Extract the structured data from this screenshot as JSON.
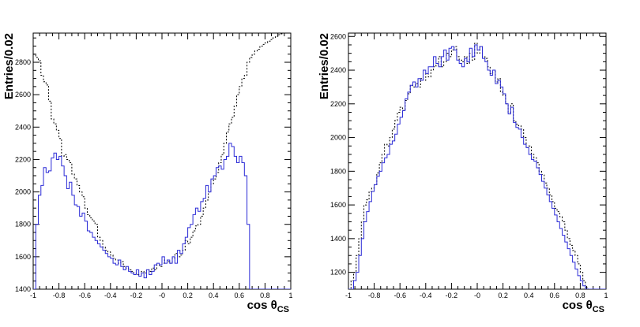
{
  "chart_data": [
    {
      "type": "histogram",
      "xlabel": "cos θ",
      "xlabel_sub": "CS",
      "ylabel": "Entries/0.02",
      "xlim": [
        -1,
        1
      ],
      "ylim": [
        1400,
        2980
      ],
      "xticks": [
        "-1",
        "-0.8",
        "-0.6",
        "-0.4",
        "-0.2",
        "-0",
        "0.2",
        "0.4",
        "0.6",
        "0.8",
        "1"
      ],
      "xtick_values": [
        -1,
        -0.8,
        -0.6,
        -0.4,
        -0.2,
        0,
        0.2,
        0.4,
        0.6,
        0.8,
        1
      ],
      "yticks": [
        "1400",
        "1600",
        "1800",
        "2000",
        "2200",
        "2400",
        "2600",
        "2800"
      ],
      "ytick_values": [
        1400,
        1600,
        1800,
        2000,
        2200,
        2400,
        2600,
        2800
      ],
      "grid": false,
      "bin_edges_start": -1,
      "bin_width": 0.02,
      "series": [
        {
          "style": "dashed",
          "color": "#000000",
          "values": [
            2850,
            2830,
            2810,
            2720,
            2680,
            2660,
            2560,
            2450,
            2420,
            2380,
            2330,
            2220,
            2230,
            2200,
            2180,
            2110,
            2080,
            2040,
            2000,
            1970,
            1900,
            1860,
            1840,
            1820,
            1800,
            1720,
            1700,
            1660,
            1640,
            1630,
            1610,
            1590,
            1580,
            1560,
            1570,
            1540,
            1530,
            1520,
            1510,
            1500,
            1490,
            1480,
            1510,
            1500,
            1520,
            1510,
            1530,
            1520,
            1550,
            1540,
            1560,
            1580,
            1570,
            1560,
            1590,
            1620,
            1600,
            1610,
            1640,
            1700,
            1680,
            1720,
            1760,
            1790,
            1800,
            1850,
            1900,
            1950,
            2000,
            2050,
            2080,
            2120,
            2180,
            2230,
            2300,
            2370,
            2420,
            2460,
            2530,
            2600,
            2650,
            2700,
            2720,
            2800,
            2830,
            2850,
            2870,
            2880,
            2900,
            2910,
            2920,
            2930,
            2940,
            2950,
            2960,
            2970,
            2975,
            2980,
            2980,
            2980
          ]
        },
        {
          "style": "solid",
          "color": "#2a2ad6",
          "values": [
            1400,
            1800,
            1980,
            2040,
            2150,
            2120,
            2130,
            2210,
            2240,
            2200,
            2220,
            2160,
            2100,
            2020,
            2060,
            1980,
            1920,
            1910,
            1850,
            1870,
            1820,
            1760,
            1750,
            1720,
            1700,
            1680,
            1660,
            1640,
            1620,
            1600,
            1590,
            1560,
            1550,
            1580,
            1540,
            1520,
            1540,
            1510,
            1500,
            1490,
            1520,
            1480,
            1500,
            1470,
            1520,
            1490,
            1510,
            1550,
            1560,
            1550,
            1600,
            1560,
            1580,
            1560,
            1600,
            1560,
            1640,
            1620,
            1680,
            1720,
            1780,
            1800,
            1860,
            1900,
            1880,
            1940,
            1960,
            2040,
            2000,
            2080,
            2100,
            2150,
            2160,
            2140,
            2200,
            2220,
            2300,
            2280,
            2220,
            2180,
            2220,
            2180,
            2100,
            1800,
            1400,
            1400,
            1400,
            1400,
            1400,
            1400,
            1400,
            1400,
            1400,
            1400,
            1400,
            1400,
            1400,
            1400,
            1400,
            1400
          ]
        }
      ]
    },
    {
      "type": "histogram",
      "xlabel": "cos θ",
      "xlabel_sub": "CS",
      "ylabel": "Entries/0.02",
      "xlim": [
        -1,
        1
      ],
      "ylim": [
        1100,
        2620
      ],
      "xticks": [
        "-1",
        "-0.8",
        "-0.6",
        "-0.4",
        "-0.2",
        "-0",
        "0.2",
        "0.4",
        "0.6",
        "0.8",
        "1"
      ],
      "xtick_values": [
        -1,
        -0.8,
        -0.6,
        -0.4,
        -0.2,
        0,
        0.2,
        0.4,
        0.6,
        0.8,
        1
      ],
      "yticks": [
        "1200",
        "1400",
        "1600",
        "1800",
        "2000",
        "2200",
        "2400",
        "2600"
      ],
      "ytick_values": [
        1200,
        1400,
        1600,
        1800,
        2000,
        2200,
        2400,
        2600
      ],
      "grid": false,
      "bin_edges_start": -1,
      "bin_width": 0.02,
      "series": [
        {
          "style": "dashed",
          "color": "#000000",
          "values": [
            1100,
            1150,
            1200,
            1300,
            1400,
            1500,
            1600,
            1630,
            1680,
            1700,
            1720,
            1790,
            1850,
            1900,
            1960,
            1950,
            2000,
            2050,
            2100,
            2150,
            2180,
            2160,
            2220,
            2260,
            2310,
            2300,
            2320,
            2300,
            2350,
            2340,
            2380,
            2360,
            2400,
            2420,
            2430,
            2480,
            2420,
            2450,
            2500,
            2480,
            2520,
            2540,
            2480,
            2460,
            2450,
            2480,
            2440,
            2500,
            2460,
            2560,
            2500,
            2540,
            2480,
            2470,
            2420,
            2380,
            2400,
            2330,
            2350,
            2270,
            2250,
            2200,
            2150,
            2200,
            2100,
            2080,
            2070,
            2050,
            2000,
            1940,
            1950,
            1900,
            1880,
            1850,
            1800,
            1780,
            1730,
            1700,
            1660,
            1620,
            1580,
            1560,
            1530,
            1500,
            1450,
            1400,
            1360,
            1330,
            1300,
            1250,
            1200,
            1150,
            1110,
            1100,
            1100,
            1100,
            1100,
            1100,
            1100,
            1100
          ]
        },
        {
          "style": "solid",
          "color": "#2a2ad6",
          "values": [
            1100,
            1100,
            1150,
            1200,
            1300,
            1400,
            1500,
            1560,
            1620,
            1680,
            1720,
            1770,
            1800,
            1850,
            1880,
            1900,
            1960,
            1980,
            2020,
            2080,
            2120,
            2160,
            2230,
            2270,
            2310,
            2330,
            2300,
            2350,
            2340,
            2400,
            2380,
            2420,
            2420,
            2480,
            2440,
            2420,
            2480,
            2520,
            2460,
            2530,
            2540,
            2520,
            2460,
            2440,
            2420,
            2470,
            2450,
            2530,
            2480,
            2550,
            2520,
            2540,
            2470,
            2450,
            2400,
            2370,
            2400,
            2320,
            2340,
            2300,
            2260,
            2200,
            2140,
            2180,
            2090,
            2060,
            2050,
            2000,
            1960,
            1940,
            1900,
            1870,
            1860,
            1820,
            1780,
            1740,
            1700,
            1660,
            1620,
            1580,
            1540,
            1500,
            1460,
            1420,
            1380,
            1340,
            1300,
            1260,
            1220,
            1180,
            1150,
            1120,
            1100,
            1100,
            1100,
            1100,
            1100,
            1100,
            1100,
            1100
          ]
        }
      ]
    }
  ]
}
